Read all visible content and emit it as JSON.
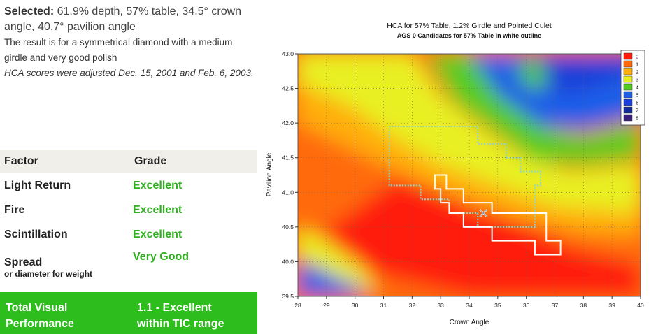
{
  "left": {
    "selected_label": "Selected:",
    "selected_text": "61.9% depth, 57% table, 34.5° crown angle, 40.7° pavilion angle",
    "result_note": "The result is for a symmetrical diamond with a medium girdle and very good polish",
    "adjust_note": "HCA scores were adjusted Dec. 15, 2001 and Feb. 6, 2003."
  },
  "table": {
    "col_factor": "Factor",
    "col_grade": "Grade",
    "rows": [
      {
        "factor": "Light Return",
        "grade": "Excellent"
      },
      {
        "factor": "Fire",
        "grade": "Excellent"
      },
      {
        "factor": "Scintillation",
        "grade": "Excellent"
      },
      {
        "factor": "Spread",
        "grade": "Very Good",
        "sub": "or diameter for weight"
      }
    ],
    "total_label_1": "Total Visual",
    "total_label_2": "Performance",
    "total_value_1": "1.1 - Excellent",
    "total_value_2a": "within",
    "total_value_2b": "TIC",
    "total_value_2c": "range"
  },
  "colors": {
    "grade_green": "#2fae1f",
    "total_bg": "#2dbd1c",
    "header_bg": "#f1efe9"
  },
  "chart_data": {
    "type": "heatmap",
    "title": "HCA for 57% Table, 1.2% Girdle and Pointed Culet",
    "subtitle": "AGS 0 Candidates for 57% Table in white outline",
    "xlabel": "Crown Angle",
    "ylabel": "Pavilion Angle",
    "xlim": [
      28,
      40
    ],
    "ylim": [
      39.5,
      43.0
    ],
    "xticks": [
      "28",
      "29",
      "30",
      "31",
      "32",
      "33",
      "34",
      "35",
      "36",
      "37",
      "38",
      "39",
      "40"
    ],
    "yticks": [
      "39.5",
      "40.0",
      "40.5",
      "41.0",
      "41.5",
      "42.0",
      "42.5",
      "43.0"
    ],
    "legend": {
      "position": "top-right",
      "levels": [
        "0",
        "1",
        "2",
        "3",
        "4",
        "5",
        "6",
        "7",
        "8"
      ],
      "colors": [
        "#ff1a0a",
        "#ff6a0a",
        "#ffae10",
        "#e8f020",
        "#55cc22",
        "#1f5fe8",
        "#1a3fd8",
        "#142a9a",
        "#3a1f7a"
      ]
    },
    "selected_point": {
      "x": 34.5,
      "y": 40.7
    },
    "dotted_outline": [
      [
        31.2,
        41.95
      ],
      [
        34.3,
        41.95
      ],
      [
        34.3,
        41.7
      ],
      [
        35.3,
        41.7
      ],
      [
        35.3,
        41.5
      ],
      [
        35.8,
        41.5
      ],
      [
        35.8,
        41.3
      ],
      [
        36.5,
        41.3
      ],
      [
        36.5,
        41.1
      ],
      [
        36.3,
        41.1
      ],
      [
        36.3,
        40.5
      ],
      [
        34.3,
        40.5
      ],
      [
        34.3,
        40.7
      ],
      [
        33.3,
        40.7
      ],
      [
        33.3,
        40.9
      ],
      [
        32.3,
        40.9
      ],
      [
        32.3,
        41.1
      ],
      [
        31.2,
        41.1
      ],
      [
        31.2,
        41.95
      ]
    ],
    "white_outline": [
      [
        32.8,
        41.25
      ],
      [
        33.2,
        41.25
      ],
      [
        33.2,
        41.05
      ],
      [
        33.8,
        41.05
      ],
      [
        33.8,
        40.85
      ],
      [
        34.8,
        40.85
      ],
      [
        34.8,
        40.7
      ],
      [
        36.7,
        40.7
      ],
      [
        36.7,
        40.3
      ],
      [
        37.2,
        40.3
      ],
      [
        37.2,
        40.1
      ],
      [
        36.3,
        40.1
      ],
      [
        36.3,
        40.3
      ],
      [
        34.8,
        40.3
      ],
      [
        34.8,
        40.5
      ],
      [
        33.8,
        40.5
      ],
      [
        33.8,
        40.7
      ],
      [
        33.3,
        40.7
      ],
      [
        33.3,
        40.85
      ],
      [
        33.0,
        40.85
      ],
      [
        33.0,
        41.05
      ],
      [
        32.8,
        41.05
      ],
      [
        32.8,
        41.25
      ]
    ]
  }
}
